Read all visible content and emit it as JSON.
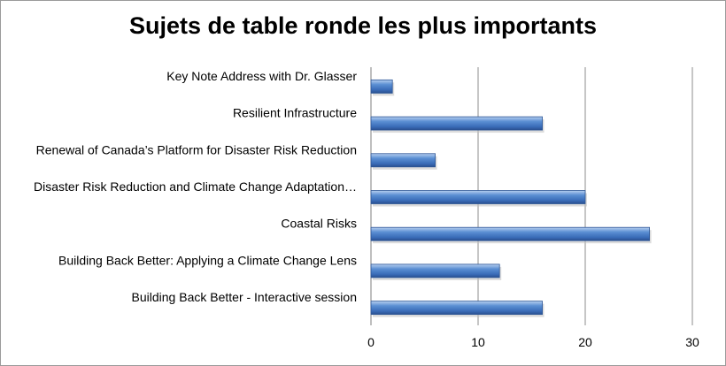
{
  "chart_data": {
    "type": "bar",
    "orientation": "horizontal",
    "title": "Sujets de table ronde les plus importants",
    "categories": [
      "Key Note Address with Dr. Glasser",
      "Resilient Infrastructure",
      "Renewal of Canada’s Platform for Disaster Risk Reduction",
      "Disaster Risk Reduction and Climate Change Adaptation…",
      "Coastal Risks",
      "Building Back Better: Applying a Climate Change Lens",
      "Building Back Better - Interactive session"
    ],
    "values": [
      2,
      16,
      6,
      20,
      26,
      12,
      16
    ],
    "xlim": [
      0,
      30
    ],
    "xticks": [
      "0",
      "10",
      "20",
      "30"
    ],
    "grid": true,
    "legend": "none",
    "colors": {
      "bar": "#4f81bd",
      "bar_dark": "#2c5595",
      "bar_light": "#a9c4ea",
      "grid": "#8c8c8c"
    }
  }
}
